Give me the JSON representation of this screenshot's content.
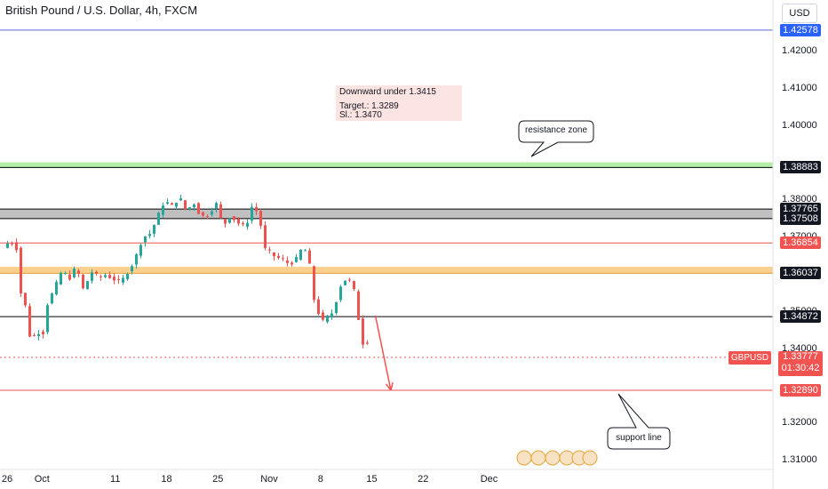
{
  "header": {
    "title": "British Pound / U.S. Dollar, 4h, FXCM",
    "currency_button": "USD"
  },
  "annotations": {
    "note_lines": [
      "Downward under 1.3415",
      "Target.: 1.3289",
      "Sl.: 1.3470"
    ],
    "resistance_label": "resistance zone",
    "support_label": "support line"
  },
  "symbol_tag": "GBPUSD",
  "current_price": {
    "price": "1.33777",
    "countdown": "01:30:42"
  },
  "colors": {
    "up": "#26a69a",
    "down": "#ef5350",
    "resistance": "#b2eea4",
    "zone_orange": "#fbcf8e",
    "zone_gray": "#c0c0c0"
  },
  "chart_data": {
    "type": "candlestick",
    "instrument": "GBPUSD",
    "ylim": [
      1.308,
      1.431
    ],
    "y_ticks": [
      {
        "v": 1.42,
        "label": "1.42000"
      },
      {
        "v": 1.41,
        "label": "1.41000"
      },
      {
        "v": 1.4,
        "label": "1.40000"
      },
      {
        "v": 1.38,
        "label": "1.38000"
      },
      {
        "v": 1.37,
        "label": "1.37000"
      },
      {
        "v": 1.35,
        "label": "1.35000"
      },
      {
        "v": 1.34,
        "label": "1.34000"
      },
      {
        "v": 1.32,
        "label": "1.32000"
      },
      {
        "v": 1.31,
        "label": "1.31000"
      }
    ],
    "x_ticks": [
      {
        "day": 0,
        "label": "26"
      },
      {
        "day": 5,
        "label": "Oct"
      },
      {
        "day": 15,
        "label": "11"
      },
      {
        "day": 22,
        "label": "18"
      },
      {
        "day": 29,
        "label": "25"
      },
      {
        "day": 36,
        "label": "Nov"
      },
      {
        "day": 43,
        "label": "8"
      },
      {
        "day": 50,
        "label": "15"
      },
      {
        "day": 57,
        "label": "22"
      },
      {
        "day": 66,
        "label": "Dec"
      }
    ],
    "horizontal_lines": [
      {
        "price": 1.42578,
        "label": "1.42578",
        "color": "#5b6ad9",
        "tag": "#2962ff"
      },
      {
        "price": 1.38883,
        "label": "1.38883",
        "color": "#000000",
        "tag": "#131722"
      },
      {
        "price": 1.37765,
        "label": "1.37765",
        "color": "#000000",
        "tag": "#131722"
      },
      {
        "price": 1.37508,
        "label": "1.37508",
        "color": "#000000",
        "tag": "#131722"
      },
      {
        "price": 1.36854,
        "label": "1.36854",
        "color": "#f05350",
        "tag": "#f05350"
      },
      {
        "price": 1.36037,
        "label": "1.36037",
        "color": "#e0a030",
        "tag": "#131722"
      },
      {
        "price": 1.34872,
        "label": "1.34872",
        "color": "#000000",
        "tag": "#131722"
      },
      {
        "price": 1.3289,
        "label": "1.32890",
        "color": "#f05350",
        "tag": "#f05350"
      }
    ],
    "zones": [
      {
        "from": 1.38883,
        "to": 1.3902,
        "color": "#b2eea4"
      },
      {
        "from": 1.37508,
        "to": 1.37765,
        "color": "#c0c0c0"
      },
      {
        "from": 1.36037,
        "to": 1.3621,
        "color": "#fbcf8e"
      }
    ],
    "price_path": [
      [
        0,
        1.3672
      ],
      [
        1,
        1.3692
      ],
      [
        2,
        1.3668
      ],
      [
        2.5,
        1.353
      ],
      [
        3,
        1.352
      ],
      [
        3.5,
        1.344
      ],
      [
        4,
        1.343
      ],
      [
        5,
        1.345
      ],
      [
        5.5,
        1.3445
      ],
      [
        6,
        1.352
      ],
      [
        7,
        1.356
      ],
      [
        8,
        1.361
      ],
      [
        9,
        1.359
      ],
      [
        10,
        1.362
      ],
      [
        11,
        1.3555
      ],
      [
        12,
        1.361
      ],
      [
        13,
        1.359
      ],
      [
        14,
        1.36
      ],
      [
        15,
        1.359
      ],
      [
        16,
        1.3575
      ],
      [
        17,
        1.361
      ],
      [
        18,
        1.364
      ],
      [
        19,
        1.37
      ],
      [
        20,
        1.371
      ],
      [
        21,
        1.375
      ],
      [
        22,
        1.38
      ],
      [
        23,
        1.3782
      ],
      [
        24,
        1.381
      ],
      [
        25,
        1.377
      ],
      [
        26,
        1.3795
      ],
      [
        27,
        1.3755
      ],
      [
        28,
        1.3762
      ],
      [
        29,
        1.3795
      ],
      [
        30,
        1.373
      ],
      [
        31,
        1.376
      ],
      [
        32,
        1.374
      ],
      [
        33,
        1.3725
      ],
      [
        34,
        1.3785
      ],
      [
        35,
        1.376
      ],
      [
        35.5,
        1.367
      ],
      [
        36,
        1.3665
      ],
      [
        37,
        1.365
      ],
      [
        38,
        1.364
      ],
      [
        39,
        1.363
      ],
      [
        40,
        1.364
      ],
      [
        41,
        1.368
      ],
      [
        42,
        1.361
      ],
      [
        42.5,
        1.352
      ],
      [
        43,
        1.35
      ],
      [
        43.5,
        1.347
      ],
      [
        44,
        1.348
      ],
      [
        45,
        1.35
      ],
      [
        46,
        1.357
      ],
      [
        47,
        1.3595
      ],
      [
        48,
        1.355
      ],
      [
        48.5,
        1.348
      ],
      [
        49,
        1.341
      ],
      [
        49.5,
        1.345
      ],
      [
        50,
        1.3378
      ]
    ],
    "arrow": {
      "from": [
        50,
        1.349
      ],
      "to": [
        52.6,
        1.3289
      ]
    }
  }
}
